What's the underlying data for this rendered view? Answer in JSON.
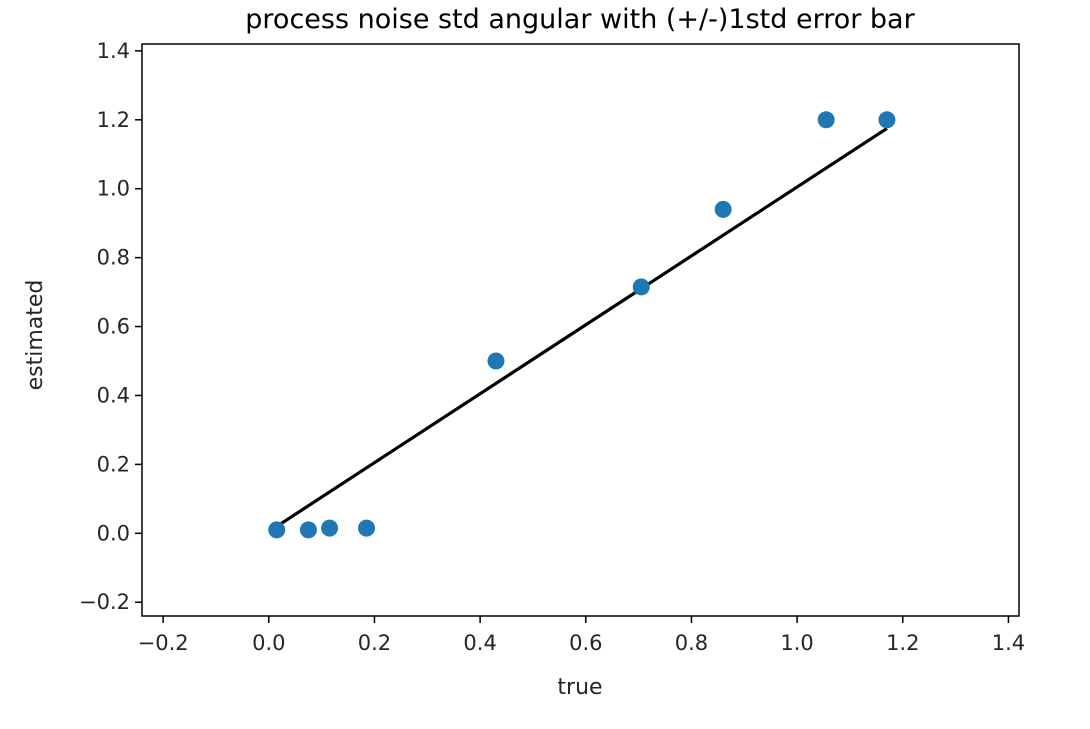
{
  "chart_data": {
    "type": "scatter",
    "title": "process noise std angular with (+/-)1std error bar",
    "xlabel": "true",
    "ylabel": "estimated",
    "xlim": [
      -0.24,
      1.42
    ],
    "ylim": [
      -0.24,
      1.42
    ],
    "xticks": [
      -0.2,
      0.0,
      0.2,
      0.4,
      0.6,
      0.8,
      1.0,
      1.2,
      1.4
    ],
    "yticks": [
      -0.2,
      0.0,
      0.2,
      0.4,
      0.6,
      0.8,
      1.0,
      1.2,
      1.4
    ],
    "xtick_labels": [
      "−0.2",
      "0.0",
      "0.2",
      "0.4",
      "0.6",
      "0.8",
      "1.0",
      "1.2",
      "1.4"
    ],
    "ytick_labels": [
      "−0.2",
      "0.0",
      "0.2",
      "0.4",
      "0.6",
      "0.8",
      "1.0",
      "1.2",
      "1.4"
    ],
    "grid": false,
    "series": [
      {
        "kind": "scatter",
        "color": "#1f77b4",
        "x": [
          0.015,
          0.075,
          0.115,
          0.185,
          0.43,
          0.705,
          0.86,
          1.055,
          1.17
        ],
        "y": [
          0.01,
          0.01,
          0.015,
          0.015,
          0.5,
          0.715,
          0.94,
          1.2,
          1.2
        ]
      },
      {
        "kind": "line",
        "color": "#000000",
        "x": [
          0.015,
          1.17
        ],
        "y": [
          0.02,
          1.175
        ]
      }
    ]
  }
}
